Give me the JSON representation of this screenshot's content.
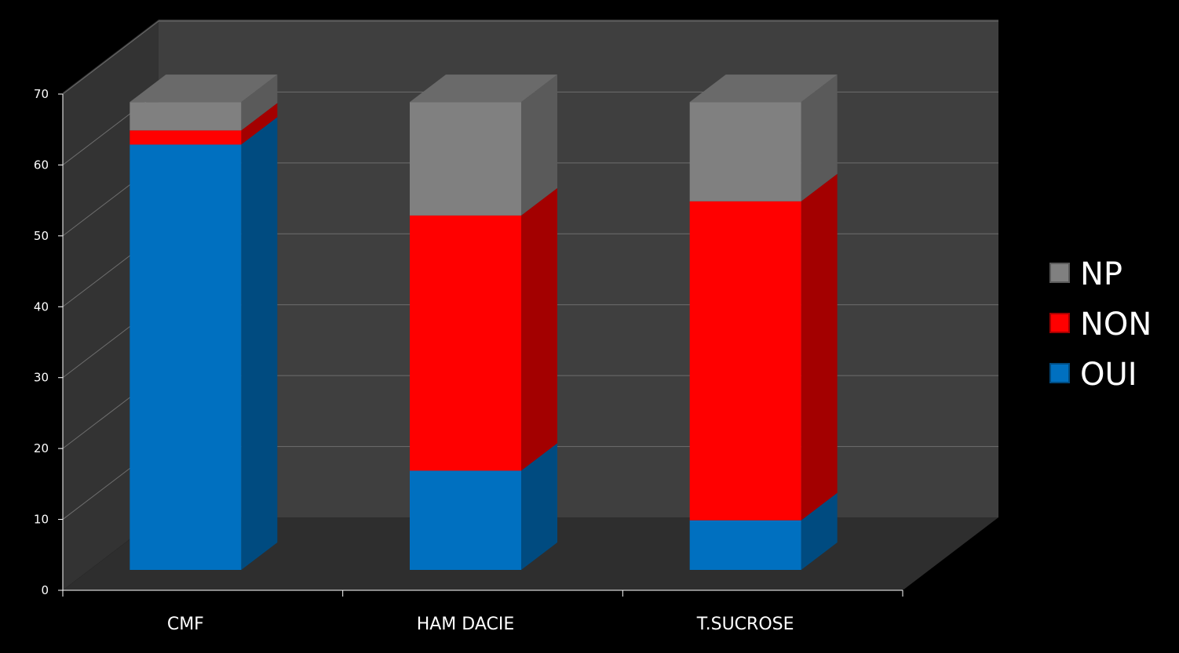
{
  "chart_data": {
    "type": "bar",
    "stacked": true,
    "three_d": true,
    "categories": [
      "CMF",
      "HAM DACIE",
      "T.SUCROSE"
    ],
    "series": [
      {
        "name": "OUI",
        "values": [
          60,
          14,
          7
        ]
      },
      {
        "name": "NON",
        "values": [
          2,
          36,
          45
        ]
      },
      {
        "name": "NP",
        "values": [
          4,
          16,
          14
        ]
      }
    ],
    "ylim": [
      0,
      70
    ],
    "yticks": [
      "0",
      "10",
      "20",
      "30",
      "40",
      "50",
      "60",
      "70"
    ],
    "ytick_values": [
      0,
      10,
      20,
      30,
      40,
      50,
      60,
      70
    ],
    "grid": true,
    "legend": "right",
    "legend_order": [
      "NP",
      "NON",
      "OUI"
    ],
    "colors": {
      "OUI": {
        "front": "#0070C0",
        "side": "#004B80"
      },
      "NON": {
        "front": "#FF0000",
        "side": "#A30000"
      },
      "NP": {
        "front": "#808080",
        "side": "#5A5A5A"
      },
      "wall": "#3F3F3F",
      "side_wall": "#333333",
      "floor": "#2E2E2E",
      "grid": "#6E6E6E",
      "text": "#FFFFFF"
    }
  }
}
